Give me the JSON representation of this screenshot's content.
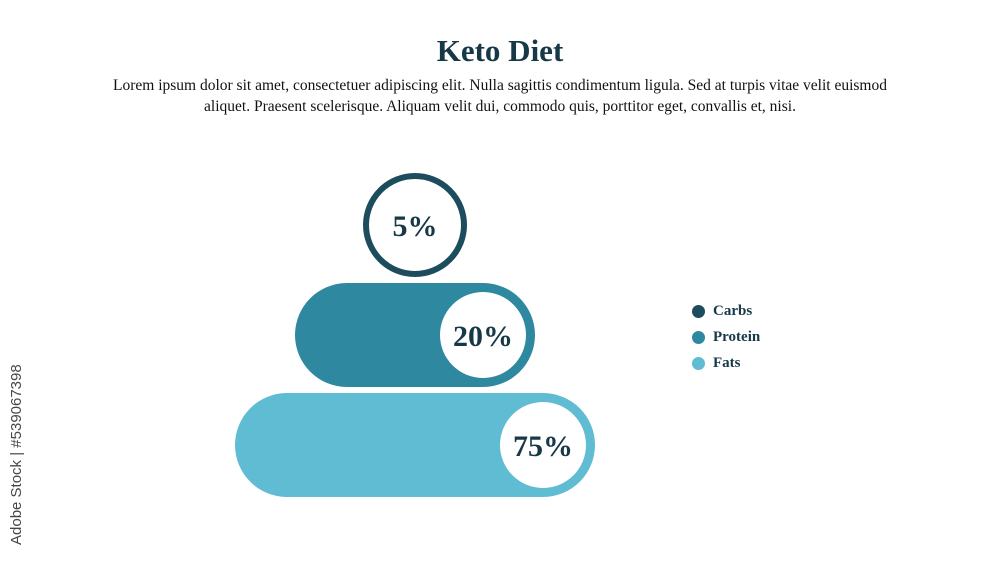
{
  "header": {
    "title": "Keto Diet",
    "subtitle": "Lorem ipsum dolor sit amet, consectetuer adipiscing elit. Nulla sagittis condimentum ligula. Sed at turpis vitae velit euismod aliquet. Praesent scelerisque. Aliquam velit dui, commodo quis, porttitor eget, convallis et, nisi."
  },
  "watermark": "Adobe Stock | #539067398",
  "chart_data": {
    "type": "bar",
    "title": "Keto Diet",
    "categories": [
      "Carbs",
      "Protein",
      "Fats"
    ],
    "values": [
      5,
      20,
      75
    ],
    "value_labels": [
      "5%",
      "20%",
      "75%"
    ],
    "unit": "%",
    "colors": [
      "#1d4c5c",
      "#2e89a0",
      "#5fbcd3"
    ],
    "legend_position": "right",
    "grid": false
  }
}
